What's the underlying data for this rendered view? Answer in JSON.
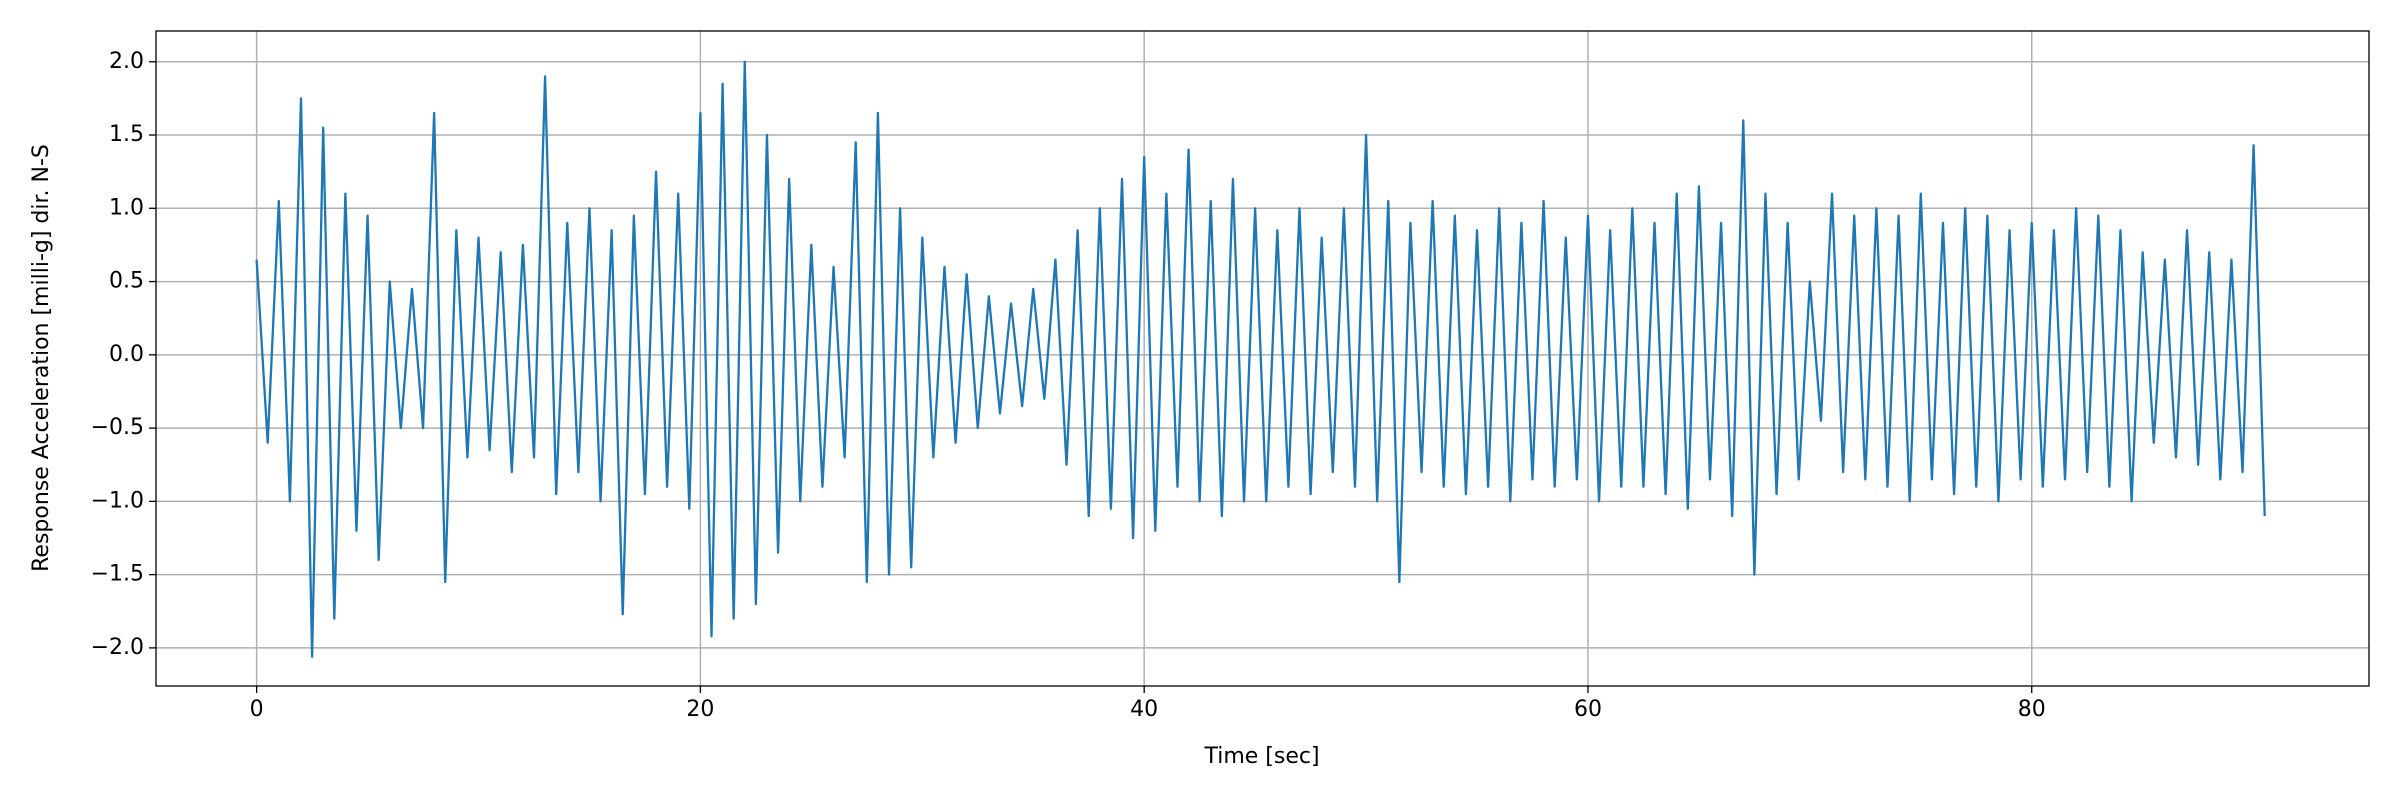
{
  "chart_data": {
    "type": "line",
    "xlabel": "Time [sec]",
    "ylabel": "Response Acceleration [milli-g] dir. N-S",
    "xlim": [
      -4.535,
      95.2
    ],
    "ylim": [
      -2.26,
      2.21
    ],
    "xticks": [
      0,
      20,
      40,
      60,
      80
    ],
    "yticks": [
      {
        "value": -2,
        "label": "−2.0"
      },
      {
        "value": -1.5,
        "label": "−1.5"
      },
      {
        "value": -1,
        "label": "−1.0"
      },
      {
        "value": -0.5,
        "label": "−0.5"
      },
      {
        "value": 0,
        "label": "0.0"
      },
      {
        "value": 0.5,
        "label": "0.5"
      },
      {
        "value": 1,
        "label": "1.0"
      },
      {
        "value": 1.5,
        "label": "1.5"
      },
      {
        "value": 2,
        "label": "2.0"
      }
    ],
    "grid": true,
    "x": [
      0,
      0.5,
      1,
      1.5,
      2,
      2.5,
      3,
      3.5,
      4,
      4.5,
      5,
      5.5,
      6,
      6.5,
      7,
      7.5,
      8,
      8.5,
      9,
      9.5,
      10,
      10.5,
      11,
      11.5,
      12,
      12.5,
      13,
      13.5,
      14,
      14.5,
      15,
      15.5,
      16,
      16.5,
      17,
      17.5,
      18,
      18.5,
      19,
      19.5,
      20,
      20.5,
      21,
      21.5,
      22,
      22.5,
      23,
      23.5,
      24,
      24.5,
      25,
      25.5,
      26,
      26.5,
      27,
      27.5,
      28,
      28.5,
      29,
      29.5,
      30,
      30.5,
      31,
      31.5,
      32,
      32.5,
      33,
      33.5,
      34,
      34.5,
      35,
      35.5,
      36,
      36.5,
      37,
      37.5,
      38,
      38.5,
      39,
      39.5,
      40,
      40.5,
      41,
      41.5,
      42,
      42.5,
      43,
      43.5,
      44,
      44.5,
      45,
      45.5,
      46,
      46.5,
      47,
      47.5,
      48,
      48.5,
      49,
      49.5,
      50,
      50.5,
      51,
      51.5,
      52,
      52.5,
      53,
      53.5,
      54,
      54.5,
      55,
      55.5,
      56,
      56.5,
      57,
      57.5,
      58,
      58.5,
      59,
      59.5,
      60,
      60.5,
      61,
      61.5,
      62,
      62.5,
      63,
      63.5,
      64,
      64.5,
      65,
      65.5,
      66,
      66.5,
      67,
      67.5,
      68,
      68.5,
      69,
      69.5,
      70,
      70.5,
      71,
      71.5,
      72,
      72.5,
      73,
      73.5,
      74,
      74.5,
      75,
      75.5,
      76,
      76.5,
      77,
      77.5,
      78,
      78.5,
      79,
      79.5,
      80,
      80.5,
      81,
      81.5,
      82,
      82.5,
      83,
      83.5,
      84,
      84.5,
      85,
      85.5,
      86,
      86.5,
      87,
      87.5,
      88,
      88.5,
      89,
      89.5,
      90,
      90.5
    ],
    "series": [
      {
        "color": "#1f77b4",
        "values": [
          0.65,
          -0.6,
          1.05,
          -1.0,
          1.75,
          -2.06,
          1.55,
          -1.8,
          1.1,
          -1.2,
          0.95,
          -1.4,
          0.5,
          -0.5,
          0.45,
          -0.5,
          1.65,
          -1.55,
          0.85,
          -0.7,
          0.8,
          -0.65,
          0.7,
          -0.8,
          0.75,
          -0.7,
          1.9,
          -0.95,
          0.9,
          -0.8,
          1.0,
          -1.0,
          0.85,
          -1.77,
          0.95,
          -0.95,
          1.25,
          -0.9,
          1.1,
          -1.05,
          1.65,
          -1.92,
          1.85,
          -1.8,
          2.0,
          -1.7,
          1.5,
          -1.35,
          1.2,
          -1.0,
          0.75,
          -0.9,
          0.6,
          -0.7,
          1.45,
          -1.55,
          1.65,
          -1.5,
          1.0,
          -1.45,
          0.8,
          -0.7,
          0.6,
          -0.6,
          0.55,
          -0.5,
          0.4,
          -0.4,
          0.35,
          -0.35,
          0.45,
          -0.3,
          0.65,
          -0.75,
          0.85,
          -1.1,
          1.0,
          -1.05,
          1.2,
          -1.25,
          1.35,
          -1.2,
          1.1,
          -0.9,
          1.4,
          -1.0,
          1.05,
          -1.1,
          1.2,
          -1.0,
          1.0,
          -1.0,
          0.85,
          -0.9,
          1.0,
          -0.95,
          0.8,
          -0.8,
          1.0,
          -0.9,
          1.5,
          -1.0,
          1.05,
          -1.55,
          0.9,
          -0.8,
          1.05,
          -0.9,
          0.95,
          -0.95,
          0.85,
          -0.9,
          1.0,
          -1.0,
          0.9,
          -0.85,
          1.05,
          -0.9,
          0.8,
          -0.85,
          0.95,
          -1.0,
          0.85,
          -0.9,
          1.0,
          -0.9,
          0.9,
          -0.95,
          1.1,
          -1.05,
          1.15,
          -0.85,
          0.9,
          -1.1,
          1.6,
          -1.5,
          1.1,
          -0.95,
          0.9,
          -0.85,
          0.5,
          -0.45,
          1.1,
          -0.8,
          0.95,
          -0.85,
          1.0,
          -0.9,
          0.95,
          -1.0,
          1.1,
          -0.85,
          0.9,
          -0.95,
          1.0,
          -0.9,
          0.95,
          -1.0,
          0.85,
          -0.85,
          0.9,
          -0.9,
          0.85,
          -0.85,
          1.0,
          -0.8,
          0.95,
          -0.9,
          0.85,
          -1.0,
          0.7,
          -0.6,
          0.65,
          -0.7,
          0.85,
          -0.75,
          0.7,
          -0.85,
          0.65,
          -0.8,
          1.43,
          -1.1
        ]
      }
    ]
  }
}
